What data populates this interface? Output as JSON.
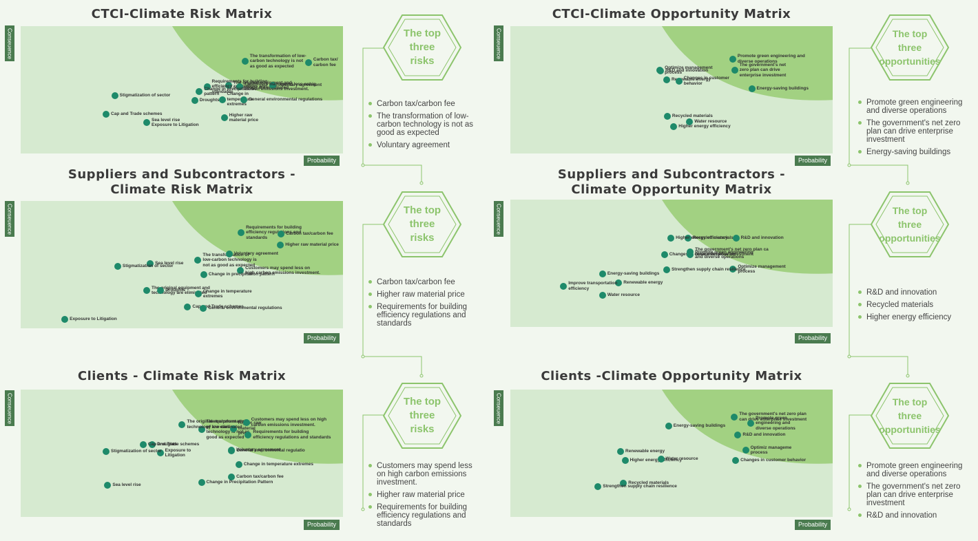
{
  "axis": {
    "y": "Conseuence",
    "x": "Probability"
  },
  "colors": {
    "background": "#f2f7ef",
    "matrix_base": "#d6ead0",
    "high_zone": "#a2d182",
    "dot": "#1e8a6a",
    "hex_accent": "#8cc46c",
    "axis_label_bg": "#4a7b4f"
  },
  "icons": {
    "hexagon": "hexagon-outline",
    "bullet": "circle-dot"
  },
  "matrices": [
    {
      "title": "CTCI-Climate Risk Matrix",
      "points": [
        {
          "label": "The transformation of low-\ncarbon technology is not\nas good as expected",
          "x": 0.696,
          "y": 0.722
        },
        {
          "label": "Carbon tax/\ncarbon fee",
          "x": 0.893,
          "y": 0.716
        },
        {
          "label": "The original equipment and\ntechnology are eliminated",
          "x": 0.645,
          "y": 0.535
        },
        {
          "label": "Requirements for building\nefficiency regulations and\nstandards",
          "x": 0.578,
          "y": 0.522
        },
        {
          "label": "Voluntary agreement",
          "x": 0.782,
          "y": 0.535
        },
        {
          "label": "Customers may spend less onhig\ncarbon emissions investment.",
          "x": 0.68,
          "y": 0.522
        },
        {
          "label": "Change in precipitation\npattern",
          "x": 0.554,
          "y": 0.486
        },
        {
          "label": "Stigmatization of sector",
          "x": 0.292,
          "y": 0.454
        },
        {
          "label": "Droughts",
          "x": 0.54,
          "y": 0.416
        },
        {
          "label": "Change in\ntemperature\nextremes",
          "x": 0.625,
          "y": 0.422
        },
        {
          "label": "General environmental regulations",
          "x": 0.692,
          "y": 0.422
        },
        {
          "label": "Higher raw\nmaterial price",
          "x": 0.632,
          "y": 0.281
        },
        {
          "label": "Cap and Trade schemes",
          "x": 0.265,
          "y": 0.308
        },
        {
          "label": "Sea level rise\nExposure to Litigation",
          "x": 0.391,
          "y": 0.243
        }
      ]
    },
    {
      "title": "CTCI-Climate Opportunity Matrix",
      "points": [
        {
          "label": "Promote green engineering and\ndiverse operations",
          "x": 0.69,
          "y": 0.741
        },
        {
          "label": "Optimize management\nprocess",
          "x": 0.464,
          "y": 0.654
        },
        {
          "label": "R&D and innovation",
          "x": 0.466,
          "y": 0.649
        },
        {
          "label": "The government's net\nzero plan can drive\nenterprise investment",
          "x": 0.696,
          "y": 0.654
        },
        {
          "label": "Renewable energy",
          "x": 0.485,
          "y": 0.578
        },
        {
          "label": "Changes in customer\nbehavior",
          "x": 0.523,
          "y": 0.568
        },
        {
          "label": "Energy-saving buildings",
          "x": 0.749,
          "y": 0.508
        },
        {
          "label": "Recycled materials",
          "x": 0.487,
          "y": 0.292
        },
        {
          "label": "Water resource",
          "x": 0.556,
          "y": 0.249
        },
        {
          "label": "Higher energy efficiency",
          "x": 0.507,
          "y": 0.211
        }
      ]
    },
    {
      "title": "Suppliers and Subcontractors -\nClimate Risk Matrix",
      "points": [
        {
          "label": "Requirements for building\nefficiency regulations and\nstandards",
          "x": 0.684,
          "y": 0.751
        },
        {
          "label": "Carbon tax/carbon fee",
          "x": 0.808,
          "y": 0.741
        },
        {
          "label": "Higher raw material price",
          "x": 0.806,
          "y": 0.654
        },
        {
          "label": "The transformation of\nlow-carbon technology is\nnot as good as expected",
          "x": 0.55,
          "y": 0.535
        },
        {
          "label": "Voluntary agreement",
          "x": 0.647,
          "y": 0.584
        },
        {
          "label": "Sea level rise",
          "x": 0.402,
          "y": 0.508
        },
        {
          "label": "Stigmatization of sector",
          "x": 0.301,
          "y": 0.484
        },
        {
          "label": "Customers may spend less on\nhigh carbon emissions investment.",
          "x": 0.682,
          "y": 0.454
        },
        {
          "label": "Change in precipitation pattern",
          "x": 0.568,
          "y": 0.419
        },
        {
          "label": "The original equipment and\ntechnology are eliminated",
          "x": 0.391,
          "y": 0.297
        },
        {
          "label": "Droughts",
          "x": 0.434,
          "y": 0.297
        },
        {
          "label": "Change in temperature\nextremes",
          "x": 0.551,
          "y": 0.27
        },
        {
          "label": "Cap and Trade schemes",
          "x": 0.518,
          "y": 0.165
        },
        {
          "label": "General environmental regulations",
          "x": 0.567,
          "y": 0.157
        },
        {
          "label": "Exposure to Litigation",
          "x": 0.137,
          "y": 0.072
        }
      ]
    },
    {
      "title": "Suppliers and Subcontractors -\nClimate Opportunity Matrix",
      "points": [
        {
          "label": "Recycled materials",
          "x": 0.551,
          "y": 0.697
        },
        {
          "label": "R&D and innovation",
          "x": 0.7,
          "y": 0.697
        },
        {
          "label": "Higher energy efficiency",
          "x": 0.498,
          "y": 0.697
        },
        {
          "label": "The government's net zero plan ca\ndrive enterprise investment",
          "x": 0.558,
          "y": 0.588
        },
        {
          "label": "Changes in customer behavior",
          "x": 0.478,
          "y": 0.567
        },
        {
          "label": "Promote green engineering\nand diverse operations",
          "x": 0.558,
          "y": 0.565
        },
        {
          "label": "Optimize management\nprocess",
          "x": 0.691,
          "y": 0.453
        },
        {
          "label": "Energy-saving buildings",
          "x": 0.286,
          "y": 0.416
        },
        {
          "label": "Strengthen supply chain resilience",
          "x": 0.485,
          "y": 0.447
        },
        {
          "label": "Renewable energy",
          "x": 0.336,
          "y": 0.345
        },
        {
          "label": "Improve transportation\nefficiency",
          "x": 0.165,
          "y": 0.319
        },
        {
          "label": "Water resource",
          "x": 0.286,
          "y": 0.25
        }
      ]
    },
    {
      "title": "Clients - Climate Risk Matrix",
      "points": [
        {
          "label": "The transformation\nof low-carbon\ntechnology is not as\ngood as expected",
          "x": 0.561,
          "y": 0.685
        },
        {
          "label": "Higher raw\nmaterial\nprice",
          "x": 0.66,
          "y": 0.694
        },
        {
          "label": "The original equipment and\ntechnology are eliminated",
          "x": 0.501,
          "y": 0.725
        },
        {
          "label": "Customers may spend less on high\ncarbon emissions investment.",
          "x": 0.7,
          "y": 0.742
        },
        {
          "label": "Requirements for building\nefficiency regulations and standards",
          "x": 0.706,
          "y": 0.645
        },
        {
          "label": "Droughts",
          "x": 0.408,
          "y": 0.565
        },
        {
          "label": "Cap and Trade schemes",
          "x": 0.38,
          "y": 0.565
        },
        {
          "label": "Voluntary agreement",
          "x": 0.654,
          "y": 0.524
        },
        {
          "label": "Exposure to\nLitigation",
          "x": 0.433,
          "y": 0.501
        },
        {
          "label": "General environmental regulatio",
          "x": 0.654,
          "y": 0.52
        },
        {
          "label": "Stigmatization of sector",
          "x": 0.265,
          "y": 0.514
        },
        {
          "label": "Change in temperature extremes",
          "x": 0.677,
          "y": 0.41
        },
        {
          "label": "Carbon tax/carbon fee",
          "x": 0.654,
          "y": 0.313
        },
        {
          "label": "Change in Precipitation Pattern",
          "x": 0.561,
          "y": 0.27
        },
        {
          "label": "Sea level rise",
          "x": 0.27,
          "y": 0.249
        }
      ]
    },
    {
      "title": "Clients -Climate Opportunity Matrix",
      "points": [
        {
          "label": "The government's net zero plan\ncan drive enterprise investment",
          "x": 0.695,
          "y": 0.784
        },
        {
          "label": "Promote green\nengineering and\ndiverse operations",
          "x": 0.746,
          "y": 0.735
        },
        {
          "label": "Energy-saving buildings",
          "x": 0.491,
          "y": 0.714
        },
        {
          "label": "R&D and innovation",
          "x": 0.706,
          "y": 0.643
        },
        {
          "label": "Optimiz manageme\nprocess",
          "x": 0.73,
          "y": 0.524
        },
        {
          "label": "Renewable energy",
          "x": 0.342,
          "y": 0.511
        },
        {
          "label": "Higher energy efficiency",
          "x": 0.356,
          "y": 0.441
        },
        {
          "label": "Water resource",
          "x": 0.467,
          "y": 0.454
        },
        {
          "label": "Changes in customer behavior",
          "x": 0.699,
          "y": 0.443
        },
        {
          "label": "Recycled materials",
          "x": 0.351,
          "y": 0.265
        },
        {
          "label": "Strengthen supply chain resilience",
          "x": 0.272,
          "y": 0.238
        }
      ]
    }
  ],
  "tops": [
    {
      "title": "The top\nthree\nrisks",
      "items": [
        "Carbon tax/carbon fee",
        "The transformation of low-\ncarbon technology is not as\ngood as expected",
        "Voluntary agreement"
      ]
    },
    {
      "title": "The top\nthree\nopportunities",
      "items": [
        "Promote green engineering\nand diverse operations",
        "The government's net zero\nplan can drive enterprise\ninvestment",
        "Energy-saving buildings"
      ]
    },
    {
      "title": "The top\nthree\nrisks",
      "items": [
        "Carbon tax/carbon fee",
        "Higher raw material price",
        "Requirements for building\nefficiency regulations and\nstandards"
      ]
    },
    {
      "title": "The top\nthree\nopportunities",
      "items": [
        "R&D and innovation",
        "Recycled materials",
        "Higher energy efficiency"
      ]
    },
    {
      "title": "The top\nthree\nrisks",
      "items": [
        "Customers may spend less\non high carbon emissions\ninvestment.",
        "Higher raw material price",
        "Requirements for building\nefficiency regulations and\nstandards"
      ]
    },
    {
      "title": "The top\nthree\nopportunities",
      "items": [
        "Promote green engineering\nand diverse operations",
        "The government's net zero\nplan can drive enterprise\ninvestment",
        "R&D and innovation"
      ]
    }
  ]
}
